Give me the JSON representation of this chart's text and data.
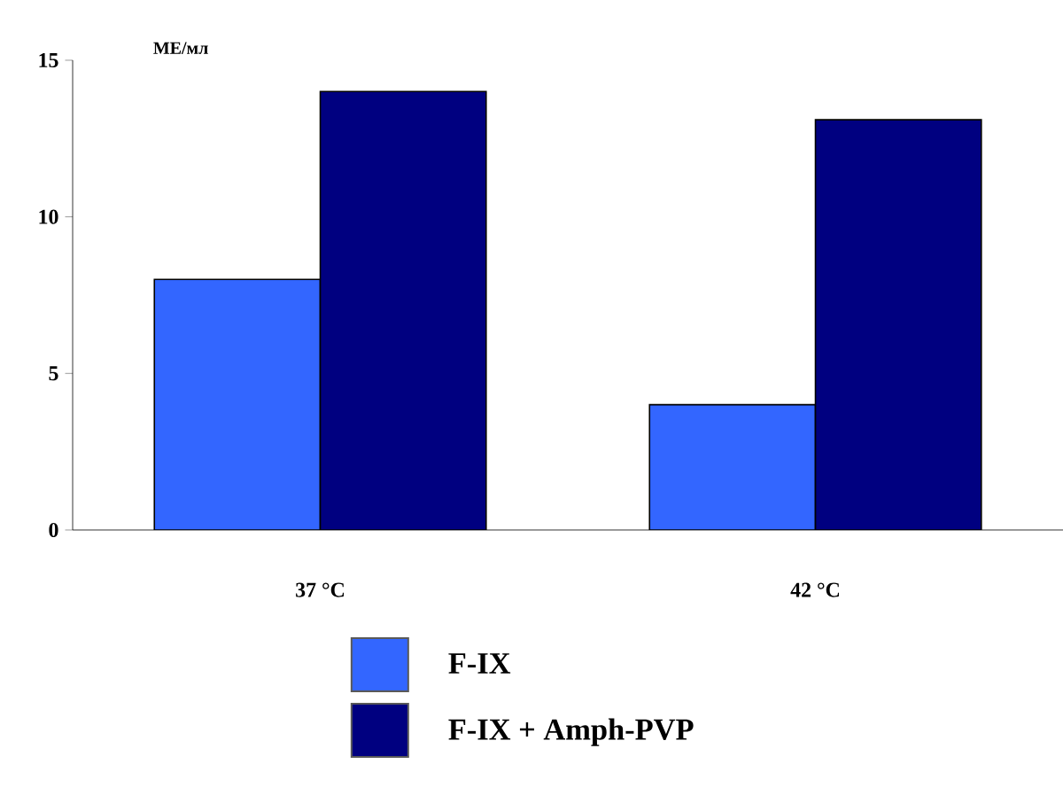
{
  "chart_data": {
    "type": "bar",
    "ylabel": "МЕ/мл",
    "categories": [
      "37 °C",
      "42 °C"
    ],
    "series": [
      {
        "name": "F-IX",
        "color": "#3366ff",
        "values": [
          8,
          4
        ]
      },
      {
        "name": "F-IX + Amph-PVP",
        "color": "#000080",
        "values": [
          14,
          13.1
        ]
      }
    ],
    "ylim": [
      0,
      15
    ],
    "yticks": [
      0,
      5,
      10,
      15
    ],
    "legend": "bottom"
  }
}
